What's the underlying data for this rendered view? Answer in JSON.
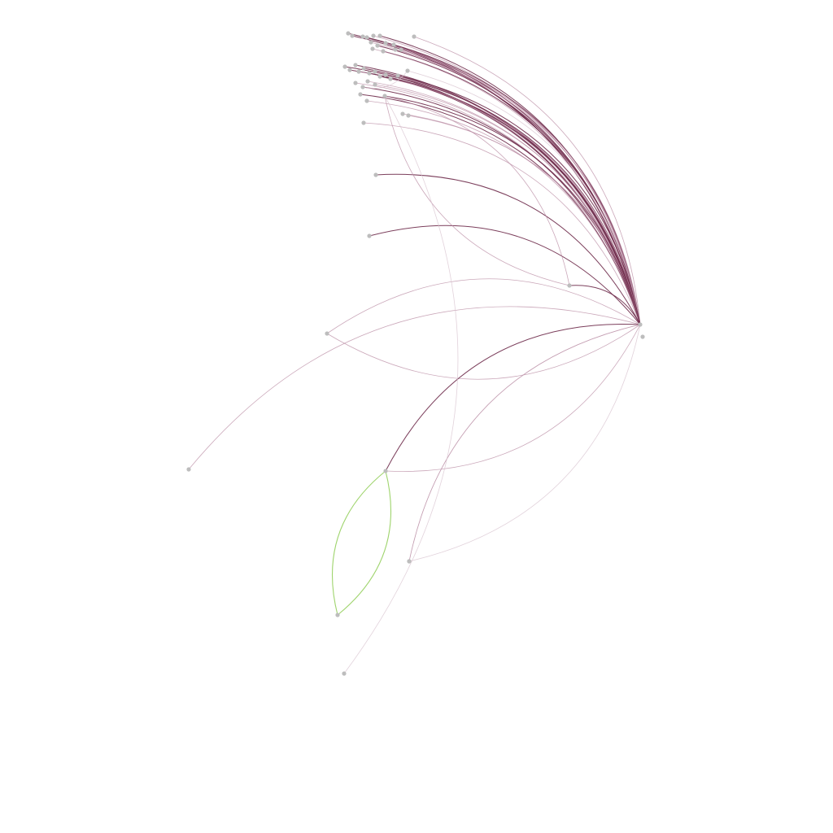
{
  "graph": {
    "type": "directed-network",
    "colors": {
      "background": "#ffffff",
      "node_fill": "#bdbdbd",
      "edge_primary": "#6e2a4a",
      "edge_light": "#b98ba3",
      "edge_faint": "#d8c3cf",
      "edge_highlight": "#7fc63c"
    },
    "nodes": [
      {
        "id": "hub"
      },
      {
        "id": "hub2"
      },
      {
        "id": "t1"
      },
      {
        "id": "t2"
      },
      {
        "id": "t3"
      },
      {
        "id": "t4"
      },
      {
        "id": "t5"
      },
      {
        "id": "t6"
      },
      {
        "id": "t7"
      },
      {
        "id": "t8"
      },
      {
        "id": "t9"
      },
      {
        "id": "t10"
      },
      {
        "id": "t11"
      },
      {
        "id": "t12"
      },
      {
        "id": "t13"
      },
      {
        "id": "t14"
      },
      {
        "id": "t15"
      },
      {
        "id": "t16"
      },
      {
        "id": "c1"
      },
      {
        "id": "c2"
      },
      {
        "id": "c3"
      },
      {
        "id": "c4"
      },
      {
        "id": "c5"
      },
      {
        "id": "c6"
      },
      {
        "id": "c7"
      },
      {
        "id": "c8"
      },
      {
        "id": "c9"
      },
      {
        "id": "c10"
      },
      {
        "id": "c11"
      },
      {
        "id": "c12"
      },
      {
        "id": "c13"
      },
      {
        "id": "c14"
      },
      {
        "id": "c15"
      },
      {
        "id": "c16"
      },
      {
        "id": "c17"
      },
      {
        "id": "c18"
      },
      {
        "id": "c19"
      },
      {
        "id": "c20"
      },
      {
        "id": "m1"
      },
      {
        "id": "m2"
      },
      {
        "id": "m3"
      },
      {
        "id": "m4"
      },
      {
        "id": "r1"
      },
      {
        "id": "l1"
      },
      {
        "id": "l2"
      },
      {
        "id": "s1"
      },
      {
        "id": "s2"
      },
      {
        "id": "s3"
      },
      {
        "id": "s4"
      }
    ],
    "edges": [
      {
        "source": "t1",
        "target": "hub",
        "weight": "primary"
      },
      {
        "source": "t2",
        "target": "hub",
        "weight": "primary"
      },
      {
        "source": "t3",
        "target": "hub",
        "weight": "light"
      },
      {
        "source": "t4",
        "target": "hub",
        "weight": "primary"
      },
      {
        "source": "t5",
        "target": "hub",
        "weight": "light"
      },
      {
        "source": "t6",
        "target": "hub",
        "weight": "primary"
      },
      {
        "source": "t7",
        "target": "hub",
        "weight": "light"
      },
      {
        "source": "t8",
        "target": "hub",
        "weight": "primary"
      },
      {
        "source": "t9",
        "target": "hub",
        "weight": "light"
      },
      {
        "source": "t10",
        "target": "hub",
        "weight": "primary"
      },
      {
        "source": "t11",
        "target": "hub",
        "weight": "light"
      },
      {
        "source": "t12",
        "target": "hub",
        "weight": "light"
      },
      {
        "source": "t13",
        "target": "hub",
        "weight": "primary"
      },
      {
        "source": "t14",
        "target": "hub",
        "weight": "light"
      },
      {
        "source": "t15",
        "target": "hub",
        "weight": "light"
      },
      {
        "source": "t16",
        "target": "hub",
        "weight": "faint"
      },
      {
        "source": "c1",
        "target": "hub",
        "weight": "primary"
      },
      {
        "source": "c2",
        "target": "hub",
        "weight": "primary"
      },
      {
        "source": "c3",
        "target": "hub",
        "weight": "primary"
      },
      {
        "source": "c4",
        "target": "hub",
        "weight": "light"
      },
      {
        "source": "c5",
        "target": "hub",
        "weight": "primary"
      },
      {
        "source": "c6",
        "target": "hub",
        "weight": "primary"
      },
      {
        "source": "c7",
        "target": "hub",
        "weight": "light"
      },
      {
        "source": "c8",
        "target": "hub",
        "weight": "primary"
      },
      {
        "source": "c9",
        "target": "hub",
        "weight": "primary"
      },
      {
        "source": "c10",
        "target": "hub",
        "weight": "light"
      },
      {
        "source": "c11",
        "target": "hub",
        "weight": "primary"
      },
      {
        "source": "c12",
        "target": "hub",
        "weight": "light"
      },
      {
        "source": "c13",
        "target": "hub",
        "weight": "primary"
      },
      {
        "source": "c14",
        "target": "hub",
        "weight": "light"
      },
      {
        "source": "c15",
        "target": "hub",
        "weight": "light"
      },
      {
        "source": "c16",
        "target": "hub",
        "weight": "primary"
      },
      {
        "source": "c17",
        "target": "hub",
        "weight": "light"
      },
      {
        "source": "c18",
        "target": "hub",
        "weight": "light"
      },
      {
        "source": "c19",
        "target": "hub",
        "weight": "light"
      },
      {
        "source": "c20",
        "target": "hub",
        "weight": "light"
      },
      {
        "source": "m1",
        "target": "hub",
        "weight": "primary"
      },
      {
        "source": "m2",
        "target": "hub",
        "weight": "primary"
      },
      {
        "source": "m3",
        "target": "hub",
        "weight": "primary"
      },
      {
        "source": "m4",
        "target": "hub",
        "weight": "primary"
      },
      {
        "source": "m3",
        "target": "m4",
        "weight": "light"
      },
      {
        "source": "m4",
        "target": "m3",
        "weight": "light"
      },
      {
        "source": "r1",
        "target": "hub",
        "weight": "light"
      },
      {
        "source": "hub",
        "target": "r1",
        "weight": "light"
      },
      {
        "source": "l1",
        "target": "hub",
        "weight": "light"
      },
      {
        "source": "s1",
        "target": "hub",
        "weight": "primary"
      },
      {
        "source": "hub",
        "target": "s1",
        "weight": "light"
      },
      {
        "source": "l2",
        "target": "hub",
        "weight": "faint"
      },
      {
        "source": "s3",
        "target": "hub",
        "weight": "light"
      },
      {
        "source": "s1",
        "target": "s2",
        "weight": "highlight"
      },
      {
        "source": "s2",
        "target": "s1",
        "weight": "highlight"
      },
      {
        "source": "m4",
        "target": "s4",
        "weight": "faint"
      },
      {
        "source": "hub",
        "target": "s3",
        "weight": "faint"
      },
      {
        "source": "t16",
        "target": "c13",
        "weight": "faint"
      }
    ]
  }
}
